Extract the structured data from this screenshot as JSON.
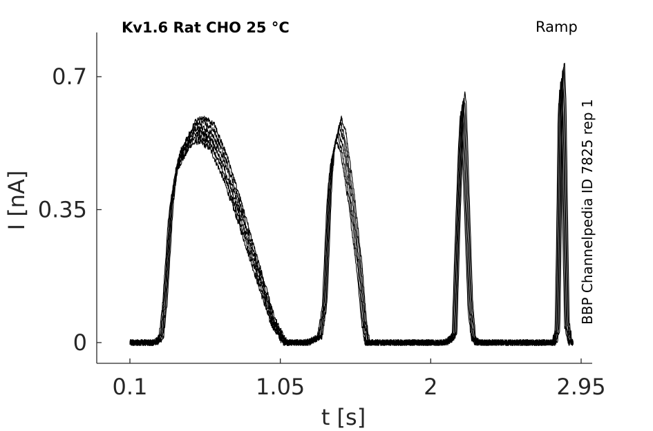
{
  "chart_data": {
    "type": "line",
    "title": "Kv1.6  Rat  CHO  25 °C",
    "protocol": "Ramp",
    "side_label": "BBP Channelpedia ID 7825 rep 1",
    "xlabel": "t [s]",
    "ylabel": "I [nA]",
    "xlim": [
      0,
      3.0
    ],
    "ylim": [
      -0.055,
      0.8
    ],
    "x_ticks": [
      0.1,
      1.05,
      2,
      2.95
    ],
    "x_tick_labels": [
      "0.1",
      "1.05",
      "2",
      "2.95"
    ],
    "y_ticks": [
      0,
      0.35,
      0.7
    ],
    "y_tick_labels": [
      "0",
      "0.35",
      "0.7"
    ],
    "grid": false,
    "color": "#000000",
    "n_traces": 6,
    "noise_amplitude_nA": 0.008,
    "series_template": {
      "x": [
        0.1,
        0.25,
        0.28,
        0.3,
        0.32,
        0.36,
        0.4,
        0.5,
        0.55,
        0.62,
        0.7,
        0.8,
        0.9,
        1.0,
        1.05,
        1.08,
        1.22,
        1.3,
        1.33,
        1.36,
        1.38,
        1.42,
        1.45,
        1.5,
        1.55,
        1.58,
        1.6,
        1.9,
        2.0,
        2.1,
        2.15,
        2.17,
        2.19,
        2.2,
        2.21,
        2.23,
        2.25,
        2.27,
        2.29,
        2.31,
        2.6,
        2.78,
        2.8,
        2.81,
        2.82,
        2.83,
        2.84,
        2.85,
        2.86,
        2.88,
        2.9,
        3.0
      ],
      "y": [
        0,
        0,
        0.005,
        0.02,
        0.1,
        0.36,
        0.48,
        0.56,
        0.57,
        0.55,
        0.47,
        0.34,
        0.2,
        0.06,
        0.02,
        0,
        0,
        0.015,
        0.1,
        0.4,
        0.5,
        0.57,
        0.53,
        0.38,
        0.2,
        0.05,
        0,
        0,
        0,
        0,
        0.02,
        0.3,
        0.55,
        0.64,
        0.6,
        0.35,
        0.1,
        0.01,
        0,
        0,
        0,
        0,
        0.03,
        0.3,
        0.65,
        0.72,
        0.6,
        0.3,
        0.05,
        0,
        0,
        0
      ]
    }
  }
}
